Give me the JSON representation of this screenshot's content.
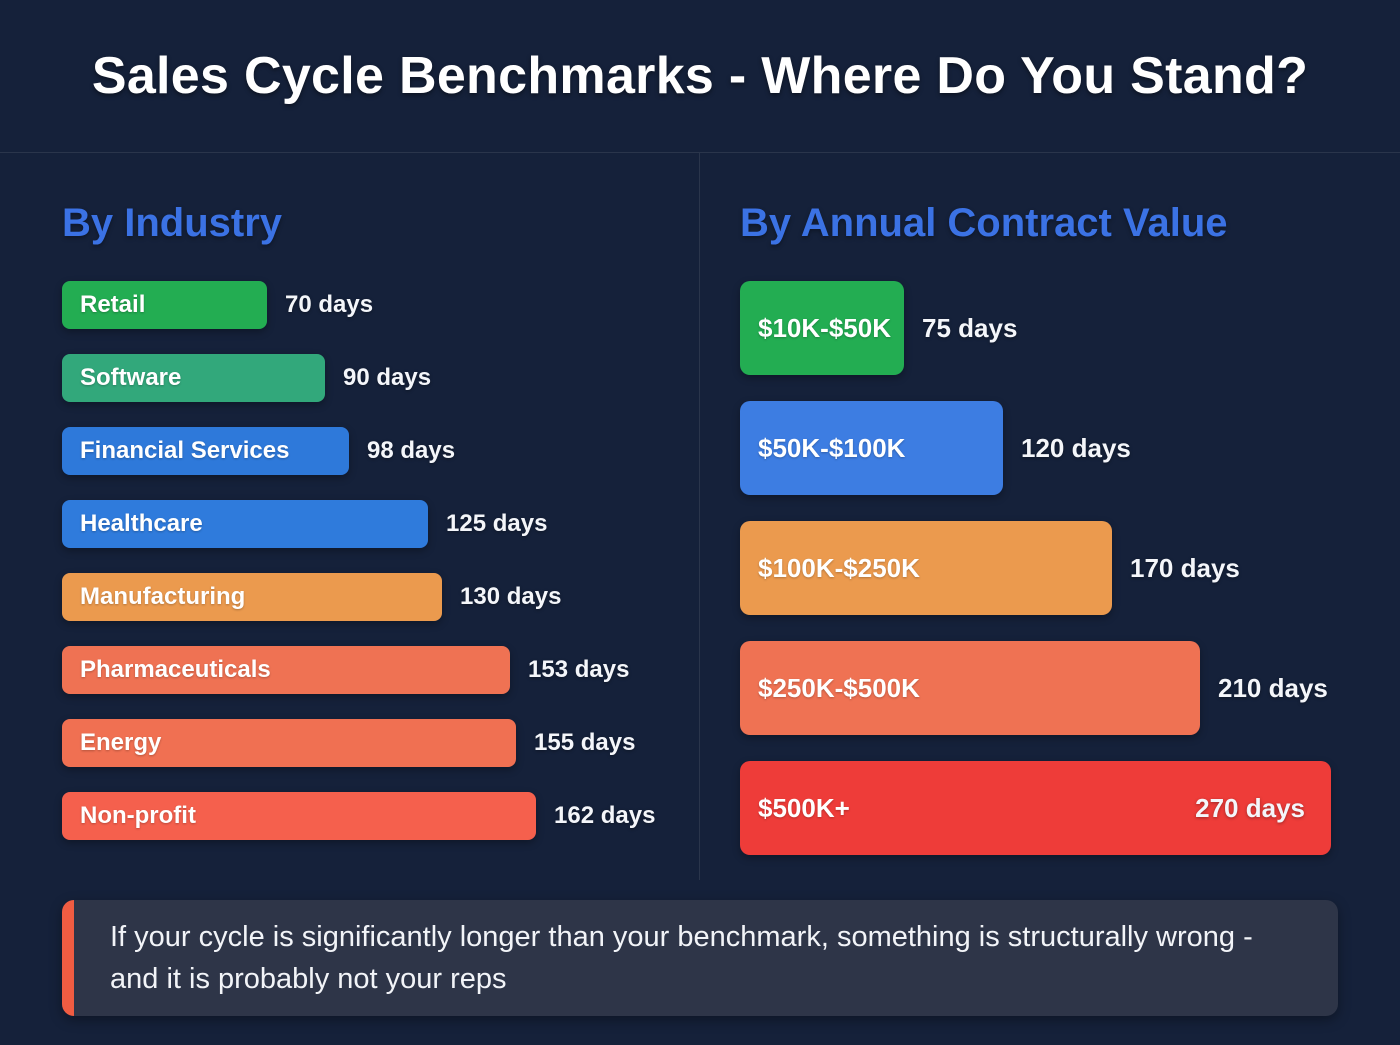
{
  "header": {
    "title": "Sales Cycle Benchmarks - Where Do You Stand?"
  },
  "colors": {
    "background": "#15213a",
    "section_heading_blue": "#3b72e4",
    "note_background": "#2e3548",
    "note_accent": "#f05c42",
    "text_white": "#ffffff"
  },
  "chart_data": [
    {
      "type": "bar",
      "orientation": "horizontal",
      "title": "By Industry",
      "categories": [
        "Retail",
        "Software",
        "Financial Services",
        "Healthcare",
        "Manufacturing",
        "Pharmaceuticals",
        "Energy",
        "Non-profit"
      ],
      "values": [
        70,
        90,
        98,
        125,
        130,
        153,
        155,
        162
      ],
      "unit": "days",
      "value_labels": [
        "70 days",
        "90 days",
        "98 days",
        "125 days",
        "130 days",
        "153 days",
        "155 days",
        "162 days"
      ],
      "bar_colors": [
        "#23ad52",
        "#32a87b",
        "#2e79da",
        "#2f7bdc",
        "#eb9a4e",
        "#ef7253",
        "#f07052",
        "#f5604d"
      ],
      "xlim": [
        0,
        162
      ],
      "grid": false,
      "legend": null
    },
    {
      "type": "bar",
      "orientation": "horizontal",
      "title": "By Annual Contract Value",
      "categories": [
        "$10K-$50K",
        "$50K-$100K",
        "$100K-$250K",
        "$250K-$500K",
        "$500K+"
      ],
      "values": [
        75,
        120,
        170,
        210,
        270
      ],
      "unit": "days",
      "value_labels": [
        "75 days",
        "120 days",
        "170 days",
        "210 days",
        "270 days"
      ],
      "bar_colors": [
        "#23ad52",
        "#3d7de2",
        "#eb9a4e",
        "#ef7253",
        "#ee3c39"
      ],
      "value_inside": [
        false,
        false,
        false,
        false,
        true
      ],
      "xlim": [
        0,
        270
      ],
      "grid": false,
      "legend": null
    }
  ],
  "note": {
    "text": "If your cycle is significantly longer than your benchmark, something is structurally wrong - and it is probably not your reps"
  }
}
